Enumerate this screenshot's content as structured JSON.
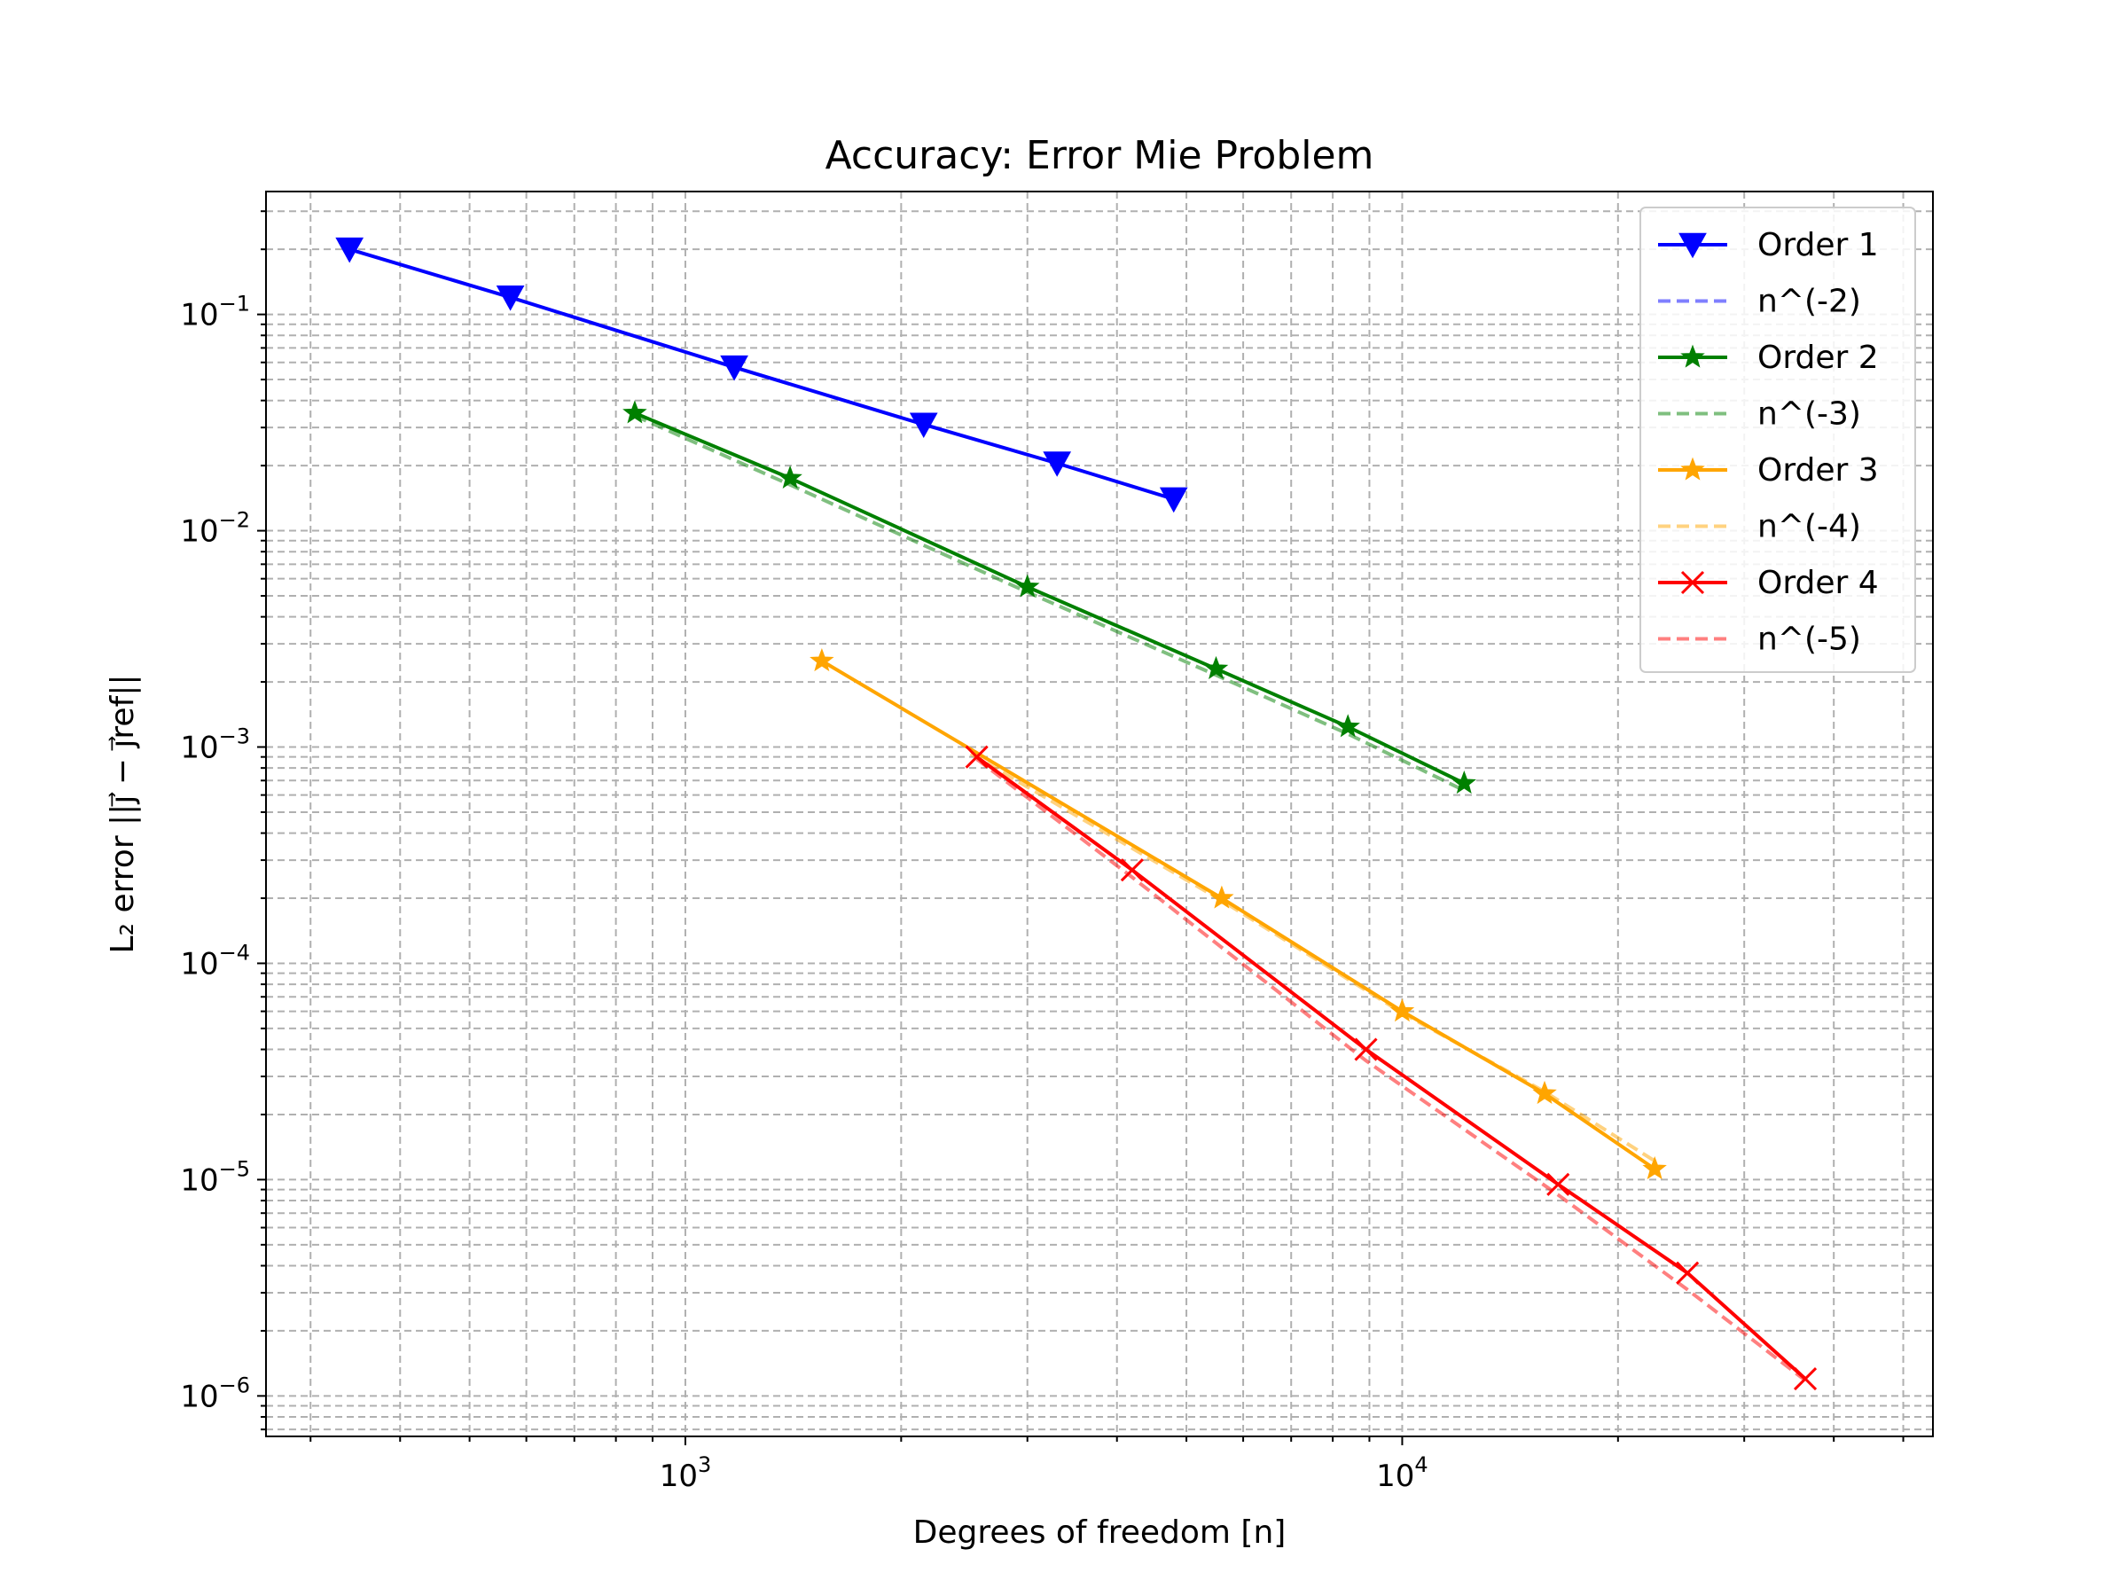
{
  "chart_data": {
    "type": "line",
    "title": "Accuracy: Error Mie Problem",
    "xlabel": "Degrees of freedom [n]",
    "ylabel": "L₂ error ||j⃗ − j⃗ref||",
    "x_scale": "log",
    "y_scale": "log",
    "xlim": [
      260,
      55000
    ],
    "ylim": [
      6.5e-07,
      0.37
    ],
    "grid": true,
    "legend_position": "top-right",
    "x_ticks": [
      {
        "value": 1000,
        "base": "10",
        "exp": "3"
      },
      {
        "value": 10000,
        "base": "10",
        "exp": "4"
      }
    ],
    "y_ticks": [
      {
        "value": 0.1,
        "base": "10",
        "exp": "−1"
      },
      {
        "value": 0.01,
        "base": "10",
        "exp": "−2"
      },
      {
        "value": 0.001,
        "base": "10",
        "exp": "−3"
      },
      {
        "value": 0.0001,
        "base": "10",
        "exp": "−4"
      },
      {
        "value": 1e-05,
        "base": "10",
        "exp": "−5"
      },
      {
        "value": 1e-06,
        "base": "10",
        "exp": "−6"
      }
    ],
    "series": [
      {
        "name": "Order 1",
        "kind": "data",
        "color": "#0000ff",
        "marker": "triangle-down",
        "x": [
          340,
          570,
          1170,
          2150,
          3300,
          4800
        ],
        "y": [
          0.2,
          0.12,
          0.057,
          0.031,
          0.0205,
          0.014
        ]
      },
      {
        "name": "n^(-2)",
        "kind": "reference",
        "color": "#0000ff",
        "marker": "none",
        "x": [],
        "y": []
      },
      {
        "name": "Order 2",
        "kind": "data",
        "color": "#008000",
        "marker": "star",
        "x": [
          850,
          1400,
          3000,
          5500,
          8400,
          12200
        ],
        "y": [
          0.035,
          0.0175,
          0.0055,
          0.0023,
          0.00124,
          0.00068
        ]
      },
      {
        "name": "n^(-3)",
        "kind": "reference",
        "color": "#008000",
        "marker": "none",
        "x": [
          850,
          1400,
          3000,
          5500,
          8400,
          12200
        ],
        "y": [
          0.034,
          0.0163,
          0.0052,
          0.00215,
          0.00115,
          0.00063
        ]
      },
      {
        "name": "Order 3",
        "kind": "data",
        "color": "#ffa500",
        "marker": "star",
        "x": [
          1550,
          5600,
          10000,
          15800,
          22500
        ],
        "y": [
          0.0025,
          0.0002,
          6e-05,
          2.5e-05,
          1.12e-05
        ]
      },
      {
        "name": "n^(-4)",
        "kind": "reference",
        "color": "#ffa500",
        "marker": "none",
        "x": [
          2500,
          5600,
          10000,
          15800,
          22500
        ],
        "y": [
          0.00093,
          0.000195,
          5.9e-05,
          2.55e-05,
          1.22e-05
        ]
      },
      {
        "name": "Order 4",
        "kind": "data",
        "color": "#ff0000",
        "marker": "x",
        "x": [
          2550,
          4200,
          8900,
          16500,
          25000,
          36500
        ],
        "y": [
          0.0009,
          0.00027,
          4e-05,
          9.5e-06,
          3.7e-06,
          1.2e-06
        ]
      },
      {
        "name": "n^(-5)",
        "kind": "reference",
        "color": "#ff0000",
        "marker": "none",
        "x": [
          2550,
          4200,
          8900,
          16500,
          25000,
          36500
        ],
        "y": [
          0.00088,
          0.00025,
          3.55e-05,
          8.5e-06,
          3.1e-06,
          1.18e-06
        ]
      }
    ]
  }
}
